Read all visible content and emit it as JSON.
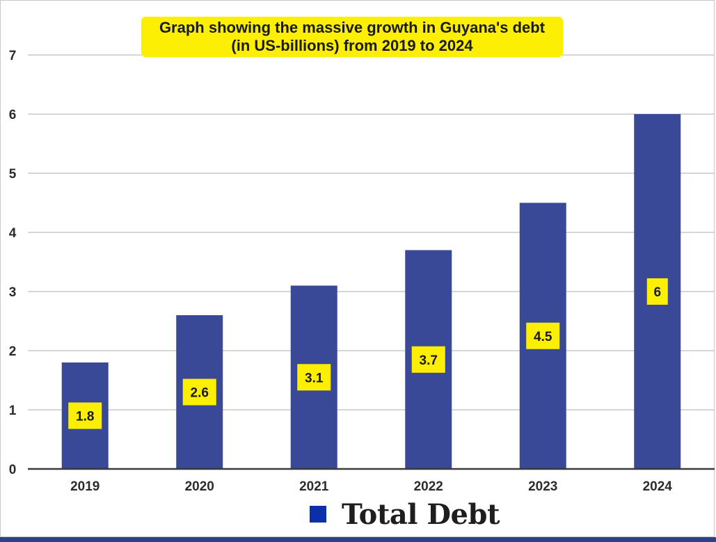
{
  "chart_data": {
    "type": "bar",
    "title": "Graph showing the massive growth in Guyana's debt (in US-billions) from 2019 to 2024",
    "categories": [
      "2019",
      "2020",
      "2021",
      "2022",
      "2023",
      "2024"
    ],
    "series": [
      {
        "name": "Total Debt",
        "values": [
          1.8,
          2.6,
          3.1,
          3.7,
          4.5,
          6
        ]
      }
    ],
    "data_labels": [
      "1.8",
      "2.6",
      "3.1",
      "3.7",
      "4.5",
      "6"
    ],
    "yticks": [
      "0",
      "1",
      "2",
      "3",
      "4",
      "5",
      "6",
      "7"
    ],
    "ylim": [
      0,
      7
    ],
    "xlabel": "",
    "ylabel": "",
    "grid": true,
    "legend_position": "bottom",
    "colors": {
      "bar": "#3a4898",
      "label_bg": "#fcef03",
      "legend_swatch": "#0a2fa8"
    }
  }
}
